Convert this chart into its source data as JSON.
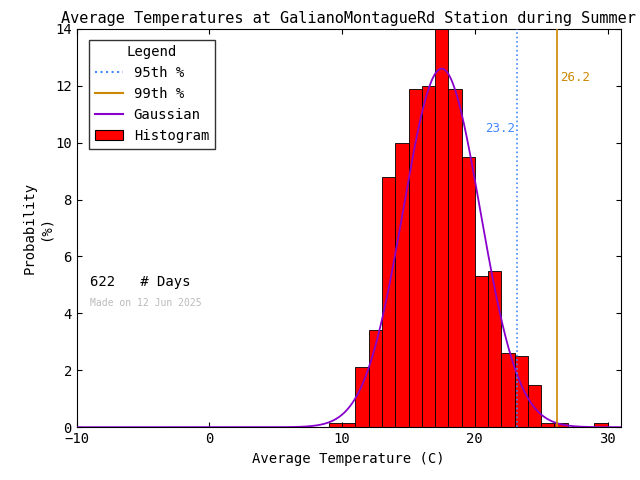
{
  "title": "Average Temperatures at GalianoMontagueRd Station during Summer",
  "xlabel": "Average Temperature (C)",
  "ylabel_line1": "Probability",
  "ylabel_line2": "(%)",
  "xlim": [
    -10,
    31
  ],
  "ylim": [
    0,
    14
  ],
  "xticks": [
    -10,
    0,
    10,
    20,
    30
  ],
  "yticks": [
    0,
    2,
    4,
    6,
    8,
    10,
    12,
    14
  ],
  "bin_edges": [
    9,
    10,
    11,
    12,
    13,
    14,
    15,
    16,
    17,
    18,
    19,
    20,
    21,
    22,
    23,
    24,
    25,
    26,
    27,
    28,
    29,
    30
  ],
  "bin_heights": [
    0.16,
    0.16,
    2.1,
    3.4,
    8.8,
    10.0,
    11.9,
    12.0,
    14.0,
    11.9,
    9.5,
    5.3,
    5.5,
    2.6,
    2.5,
    1.5,
    0.15,
    0.15,
    0.0,
    0.0,
    0.15,
    0.0
  ],
  "hist_color": "#ff0000",
  "hist_edgecolor": "#000000",
  "gauss_color": "#8800cc",
  "gauss_mean": 17.5,
  "gauss_std": 2.9,
  "p95_value": 23.2,
  "p95_color": "#4488ff",
  "p95_label": "23.2",
  "p99_value": 26.2,
  "p99_color": "#cc8800",
  "p99_label": "26.2",
  "n_days": 622,
  "made_on": "Made on 12 Jun 2025",
  "bg_color": "#ffffff",
  "title_fontsize": 11,
  "axis_fontsize": 10,
  "legend_fontsize": 10,
  "tick_fontsize": 10,
  "annot_fontsize": 9
}
